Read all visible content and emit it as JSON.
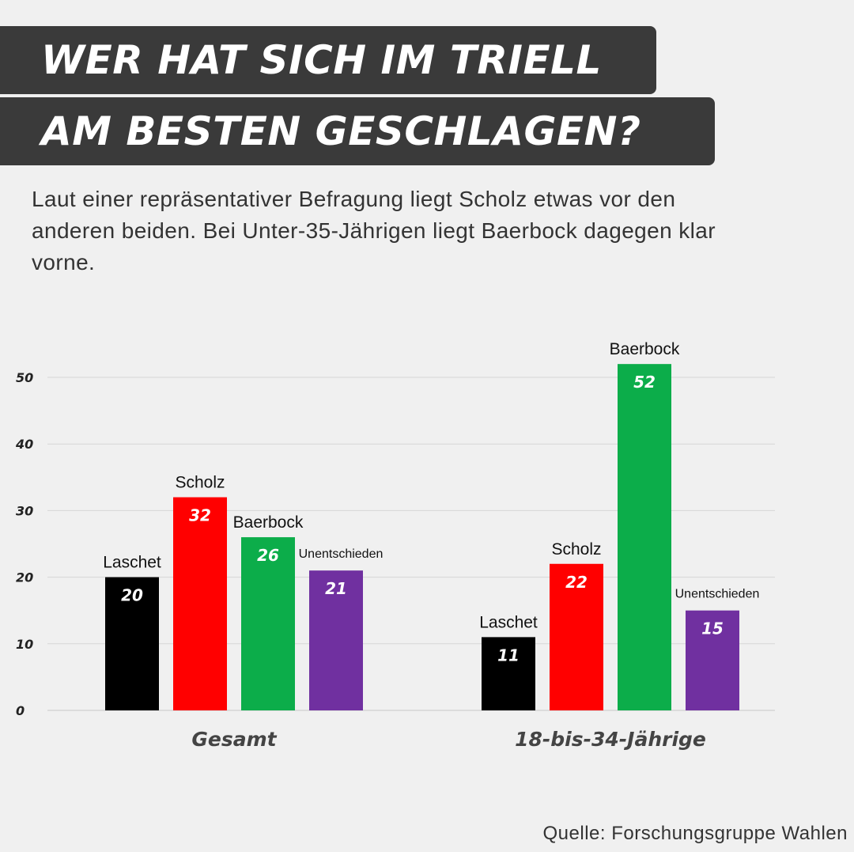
{
  "header": {
    "title_line1": "WER HAT SICH IM TRIELL",
    "title_line2": "AM BESTEN GESCHLAGEN?",
    "subtitle": "Laut einer repräsentativer Befragung liegt Scholz etwas vor den anderen beiden. Bei Unter-35-Jährigen liegt Baerbock dagegen klar vorne."
  },
  "source": "Quelle: Forschungsgruppe Wahlen",
  "chart_data": {
    "type": "bar",
    "ylim": [
      0,
      50
    ],
    "yticks": [
      0,
      10,
      20,
      30,
      40,
      50
    ],
    "grid": true,
    "groups": [
      {
        "label": "Gesamt",
        "bars": [
          {
            "name": "Laschet",
            "value": 20,
            "color": "#000000"
          },
          {
            "name": "Scholz",
            "value": 32,
            "color": "#ff0000"
          },
          {
            "name": "Baerbock",
            "value": 26,
            "color": "#0cad4a"
          },
          {
            "name": "Unentschieden",
            "value": 21,
            "color": "#7030a0"
          }
        ]
      },
      {
        "label": "18-bis-34-Jährige",
        "bars": [
          {
            "name": "Laschet",
            "value": 11,
            "color": "#000000"
          },
          {
            "name": "Scholz",
            "value": 22,
            "color": "#ff0000"
          },
          {
            "name": "Baerbock",
            "value": 52,
            "color": "#0cad4a"
          },
          {
            "name": "Unentschieden",
            "value": 15,
            "color": "#7030a0"
          }
        ]
      }
    ]
  }
}
